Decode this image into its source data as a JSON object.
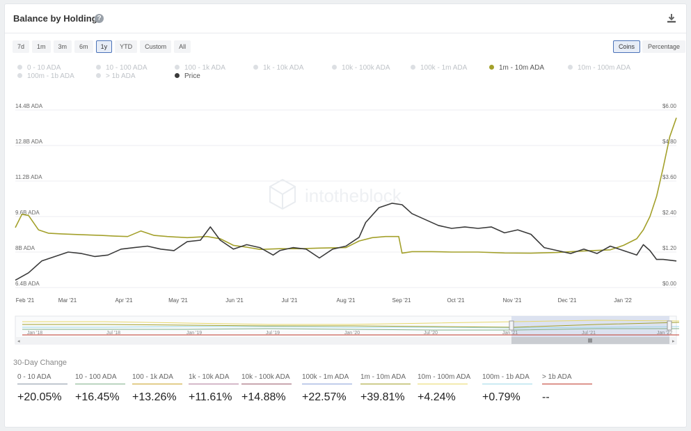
{
  "header": {
    "title": "Balance by Holdings",
    "help_icon": "?",
    "download_icon": "download-icon"
  },
  "range_buttons": [
    "7d",
    "1m",
    "3m",
    "6m",
    "1y",
    "YTD",
    "Custom",
    "All"
  ],
  "range_active": "1y",
  "mode_buttons": [
    "Coins",
    "Percentage"
  ],
  "mode_active": "Coins",
  "legend": [
    {
      "label": "0 - 10 ADA",
      "active": false
    },
    {
      "label": "10 - 100 ADA",
      "active": false
    },
    {
      "label": "100 - 1k ADA",
      "active": false
    },
    {
      "label": "1k - 10k ADA",
      "active": false
    },
    {
      "label": "10k - 100k ADA",
      "active": false
    },
    {
      "label": "100k - 1m ADA",
      "active": false
    },
    {
      "label": "1m - 10m ADA",
      "active": true
    },
    {
      "label": "10m - 100m ADA",
      "active": false
    },
    {
      "label": "100m - 1b ADA",
      "active": false
    },
    {
      "label": "> 1b ADA",
      "active": false
    },
    {
      "label": "Price",
      "active": true
    }
  ],
  "watermark": "intotheblock",
  "chart_data": {
    "type": "line",
    "x_labels": [
      "Feb '21",
      "Mar '21",
      "Apr '21",
      "May '21",
      "Jun '21",
      "Jul '21",
      "Aug '21",
      "Sep '21",
      "Oct '21",
      "Nov '21",
      "Dec '21",
      "Jan '22"
    ],
    "y_left_ticks": [
      "6.4B ADA",
      "8B ADA",
      "9.6B ADA",
      "11.2B ADA",
      "12.8B ADA",
      "14.4B ADA"
    ],
    "y_right_ticks": [
      "$0.00",
      "$1.20",
      "$2.40",
      "$3.60",
      "$4.80",
      "$6.00"
    ],
    "y_left_range": [
      6.4,
      14.4
    ],
    "y_right_range": [
      0,
      6.0
    ],
    "grid": true,
    "legend_position": "top",
    "series": [
      {
        "name": "1m - 10m ADA",
        "axis": "left",
        "color": "#a3a02a",
        "x": [
          0,
          0.01,
          0.02,
          0.035,
          0.05,
          0.07,
          0.1,
          0.13,
          0.15,
          0.17,
          0.19,
          0.21,
          0.23,
          0.26,
          0.29,
          0.31,
          0.33,
          0.35,
          0.37,
          0.4,
          0.43,
          0.46,
          0.5,
          0.52,
          0.54,
          0.56,
          0.58,
          0.585,
          0.6,
          0.63,
          0.66,
          0.7,
          0.74,
          0.78,
          0.82,
          0.86,
          0.9,
          0.92,
          0.94,
          0.95,
          0.96,
          0.97,
          0.98,
          0.99,
          1.0
        ],
        "y": [
          9.1,
          9.7,
          9.65,
          9.0,
          8.85,
          8.82,
          8.78,
          8.75,
          8.72,
          8.7,
          8.95,
          8.75,
          8.7,
          8.65,
          8.7,
          8.6,
          8.3,
          8.22,
          8.12,
          8.15,
          8.15,
          8.18,
          8.2,
          8.5,
          8.65,
          8.7,
          8.7,
          7.95,
          8.02,
          8.02,
          8.0,
          8.0,
          7.96,
          7.95,
          7.98,
          8.05,
          8.1,
          8.3,
          8.6,
          9.0,
          9.6,
          10.5,
          11.8,
          13.2,
          14.05
        ]
      },
      {
        "name": "Price",
        "axis": "right",
        "color": "#3a3a3a",
        "x": [
          0,
          0.02,
          0.04,
          0.06,
          0.08,
          0.1,
          0.12,
          0.14,
          0.16,
          0.18,
          0.2,
          0.22,
          0.24,
          0.26,
          0.28,
          0.295,
          0.31,
          0.33,
          0.35,
          0.37,
          0.39,
          0.4,
          0.42,
          0.44,
          0.46,
          0.48,
          0.5,
          0.52,
          0.53,
          0.55,
          0.57,
          0.585,
          0.6,
          0.62,
          0.64,
          0.66,
          0.68,
          0.7,
          0.72,
          0.74,
          0.76,
          0.78,
          0.8,
          0.82,
          0.84,
          0.86,
          0.88,
          0.9,
          0.92,
          0.94,
          0.95,
          0.96,
          0.97,
          0.98,
          1.0
        ],
        "y": [
          0.25,
          0.5,
          0.9,
          1.05,
          1.2,
          1.15,
          1.05,
          1.1,
          1.3,
          1.35,
          1.4,
          1.3,
          1.25,
          1.55,
          1.6,
          2.05,
          1.6,
          1.3,
          1.45,
          1.35,
          1.1,
          1.25,
          1.35,
          1.3,
          1.0,
          1.3,
          1.4,
          1.7,
          2.2,
          2.7,
          2.85,
          2.8,
          2.5,
          2.3,
          2.1,
          2.0,
          2.05,
          2.0,
          2.05,
          1.85,
          1.95,
          1.8,
          1.35,
          1.25,
          1.15,
          1.3,
          1.15,
          1.4,
          1.25,
          1.1,
          1.45,
          1.25,
          0.95,
          0.95,
          0.9
        ]
      }
    ]
  },
  "navigator": {
    "x_labels": [
      "Jan '18",
      "Jul '18",
      "Jan '19",
      "Jul '19",
      "Jan '20",
      "Jul '20",
      "Jan '21",
      "Jul '21",
      "Jan '22"
    ],
    "handle_icon": "scroll-handle-icon"
  },
  "change_section": {
    "title": "30-Day Change",
    "items": [
      {
        "label": "0 - 10 ADA",
        "value": "+20.05%",
        "color": "#8a96a6"
      },
      {
        "label": "10 - 100 ADA",
        "value": "+16.45%",
        "color": "#7fb08a"
      },
      {
        "label": "100 - 1k ADA",
        "value": "+13.26%",
        "color": "#c9a227"
      },
      {
        "label": "1k - 10k ADA",
        "value": "+11.61%",
        "color": "#b07a9a"
      },
      {
        "label": "10k - 100k ADA",
        "value": "+14.88%",
        "color": "#9a5a6a"
      },
      {
        "label": "100k - 1m ADA",
        "value": "+22.57%",
        "color": "#8aa0d8"
      },
      {
        "label": "1m - 10m ADA",
        "value": "+39.81%",
        "color": "#a3a02a"
      },
      {
        "label": "10m - 100m ADA",
        "value": "+4.24%",
        "color": "#e8d86a"
      },
      {
        "label": "100m - 1b ADA",
        "value": "+0.79%",
        "color": "#9fd8e8"
      },
      {
        "label": "> 1b ADA",
        "value": "--",
        "color": "#c0392b"
      }
    ]
  }
}
